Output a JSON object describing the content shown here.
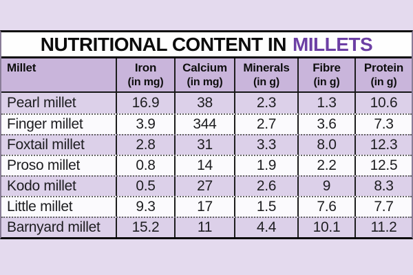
{
  "title": {
    "prefix": "NUTRITIONAL CONTENT IN",
    "accent": "MILLETS"
  },
  "colors": {
    "page_background": "#e4daee",
    "title_band_background": "#fefefe",
    "title_text": "#0c0c0c",
    "title_accent": "#6c3fa4",
    "header_background": "#c9b5db",
    "row_purple": "#dcd0e9",
    "row_white": "#fbfafd",
    "border_black": "#070707",
    "dotted_separator": "#636363"
  },
  "table": {
    "columns": [
      {
        "label": "Millet",
        "unit": ""
      },
      {
        "label": "Iron",
        "unit": "(in mg)"
      },
      {
        "label": "Calcium",
        "unit": "(in mg)"
      },
      {
        "label": "Minerals",
        "unit": "(in g)"
      },
      {
        "label": "Fibre",
        "unit": "(in g)"
      },
      {
        "label": "Protein",
        "unit": "(in g)"
      }
    ],
    "rows": [
      {
        "name": "Pearl millet",
        "values": [
          "16.9",
          "38",
          "2.3",
          "1.3",
          "10.6"
        ]
      },
      {
        "name": "Finger millet",
        "values": [
          "3.9",
          "344",
          "2.7",
          "3.6",
          "7.3"
        ]
      },
      {
        "name": "Foxtail millet",
        "values": [
          "2.8",
          "31",
          "3.3",
          "8.0",
          "12.3"
        ]
      },
      {
        "name": "Proso millet",
        "values": [
          "0.8",
          "14",
          "1.9",
          "2.2",
          "12.5"
        ]
      },
      {
        "name": "Kodo millet",
        "values": [
          "0.5",
          "27",
          "2.6",
          "9",
          "8.3"
        ]
      },
      {
        "name": "Little millet",
        "values": [
          "9.3",
          "17",
          "1.5",
          "7.6",
          "7.7"
        ]
      },
      {
        "name": "Barnyard millet",
        "values": [
          "15.2",
          "11",
          "4.4",
          "10.1",
          "11.2"
        ]
      }
    ]
  },
  "chart_data": {
    "type": "table",
    "title": "NUTRITIONAL CONTENT IN MILLETS",
    "columns": [
      "Millet",
      "Iron (in mg)",
      "Calcium (in mg)",
      "Minerals (in g)",
      "Fibre (in g)",
      "Protein (in g)"
    ],
    "rows": [
      [
        "Pearl millet",
        16.9,
        38,
        2.3,
        1.3,
        10.6
      ],
      [
        "Finger millet",
        3.9,
        344,
        2.7,
        3.6,
        7.3
      ],
      [
        "Foxtail millet",
        2.8,
        31,
        3.3,
        8.0,
        12.3
      ],
      [
        "Proso millet",
        0.8,
        14,
        1.9,
        2.2,
        12.5
      ],
      [
        "Kodo millet",
        0.5,
        27,
        2.6,
        9,
        8.3
      ],
      [
        "Little millet",
        9.3,
        17,
        1.5,
        7.6,
        7.7
      ],
      [
        "Barnyard millet",
        15.2,
        11,
        4.4,
        10.1,
        11.2
      ]
    ],
    "layout": {
      "row_striping": "alternating purple/white starting purple",
      "column_dividers": "solid black",
      "row_separators": "dotted gray"
    }
  }
}
